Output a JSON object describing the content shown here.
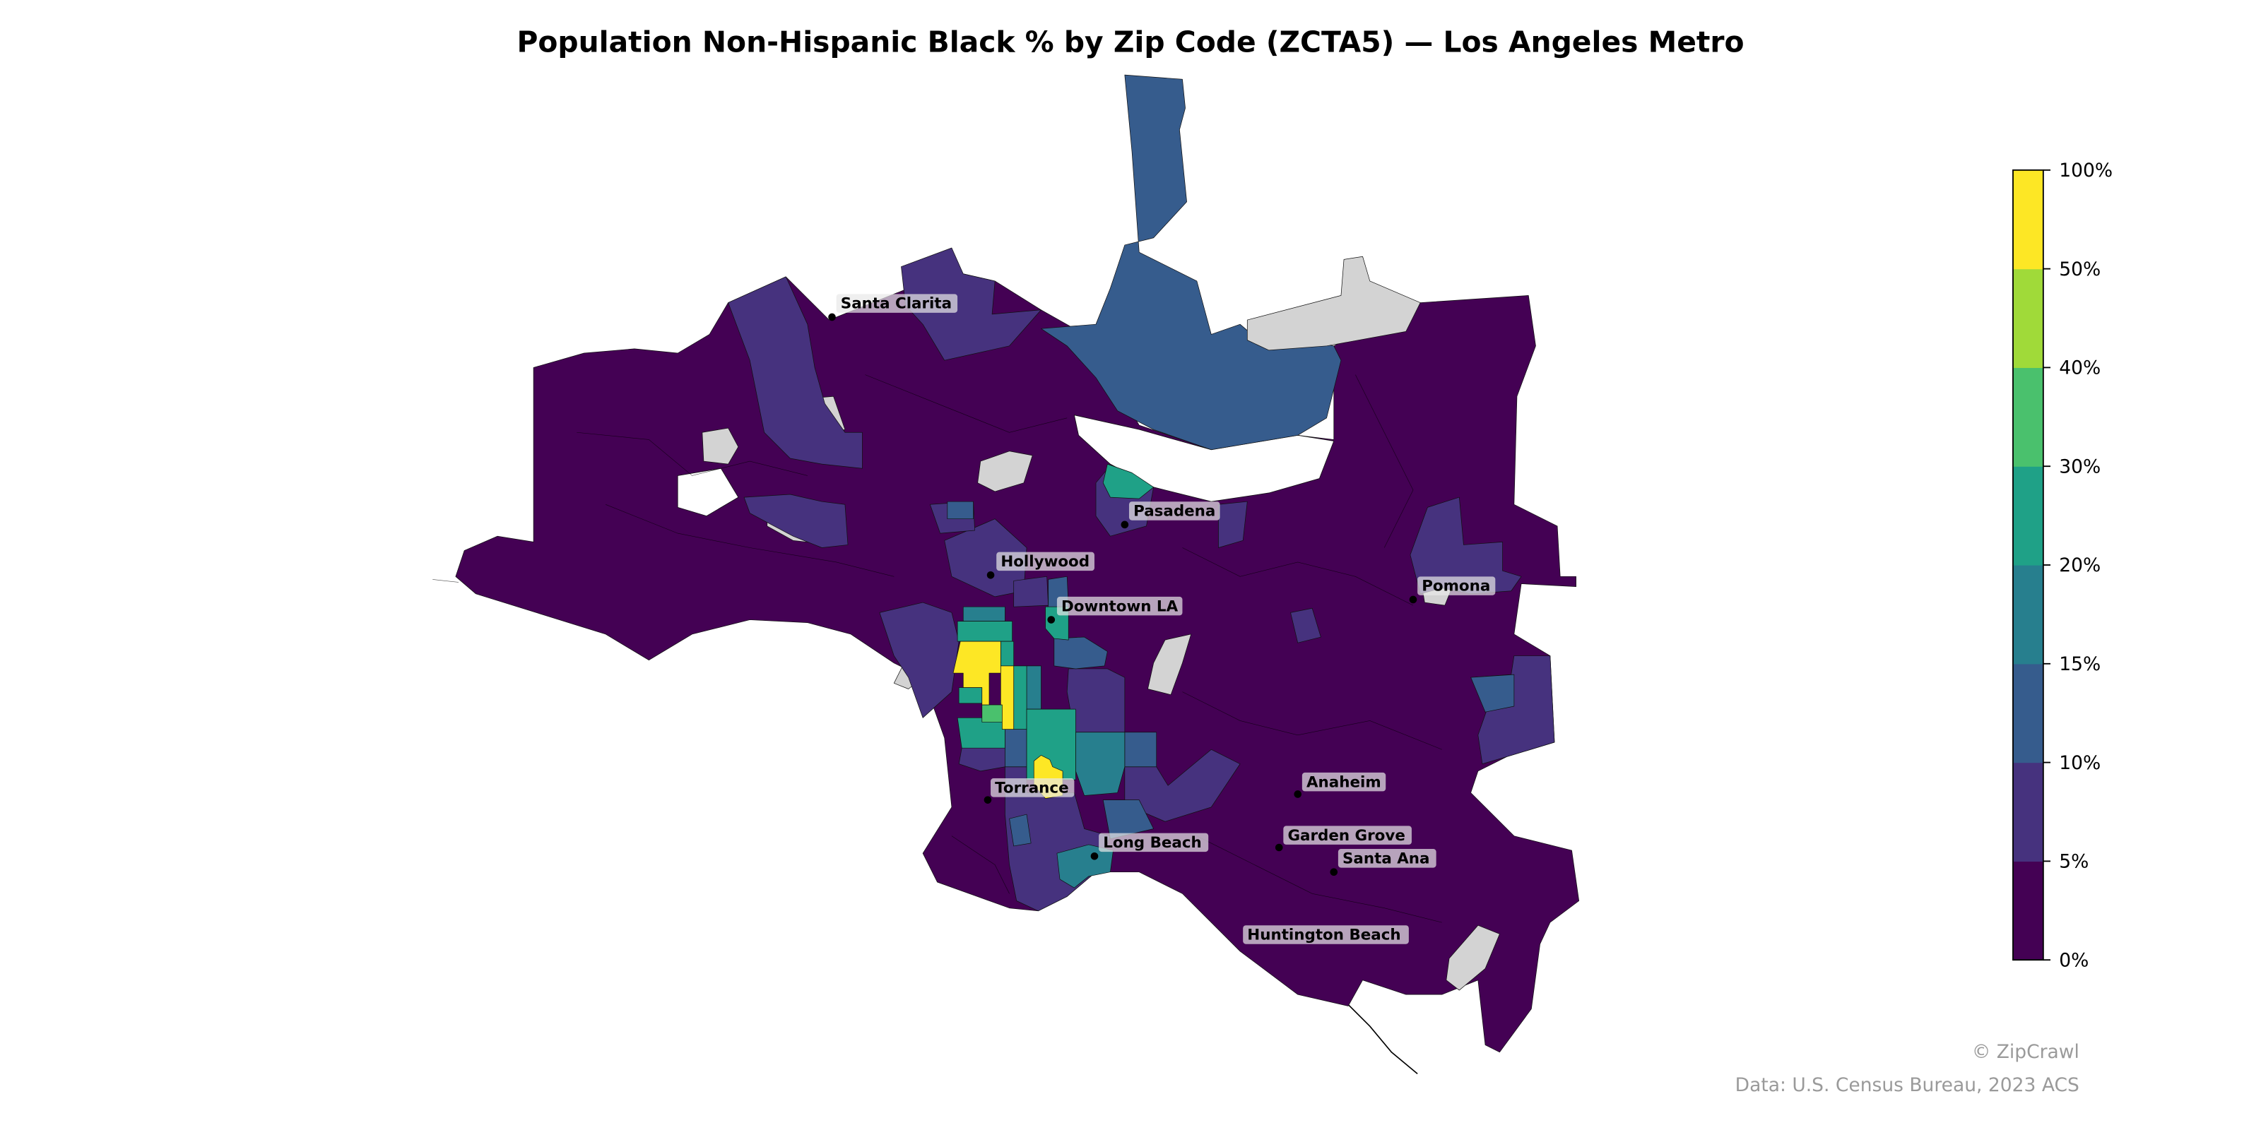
{
  "title": "Population Non-Hispanic Black % by Zip Code (ZCTA5) — Los Angeles Metro",
  "legend": {
    "ticks": [
      "0%",
      "5%",
      "10%",
      "15%",
      "20%",
      "30%",
      "40%",
      "50%",
      "100%"
    ],
    "bins": [
      {
        "range": "0-5%",
        "color": "#440154"
      },
      {
        "range": "5-10%",
        "color": "#46327e"
      },
      {
        "range": "10-15%",
        "color": "#365c8d"
      },
      {
        "range": "15-20%",
        "color": "#277f8e"
      },
      {
        "range": "20-30%",
        "color": "#1fa187"
      },
      {
        "range": "30-40%",
        "color": "#4ac16d"
      },
      {
        "range": "40-50%",
        "color": "#a0da39"
      },
      {
        "range": "50-100%",
        "color": "#fde725"
      }
    ],
    "nodata_color": "#d3d3d3"
  },
  "cities": [
    {
      "name": "Santa Clarita"
    },
    {
      "name": "Pasadena"
    },
    {
      "name": "Hollywood"
    },
    {
      "name": "Downtown LA"
    },
    {
      "name": "Pomona"
    },
    {
      "name": "Torrance"
    },
    {
      "name": "Anaheim"
    },
    {
      "name": "Long Beach"
    },
    {
      "name": "Garden Grove"
    },
    {
      "name": "Santa Ana"
    },
    {
      "name": "Huntington Beach"
    }
  ],
  "credits": {
    "copyright": "© ZipCrawl",
    "source": "Data: U.S. Census Bureau, 2023 ACS"
  }
}
